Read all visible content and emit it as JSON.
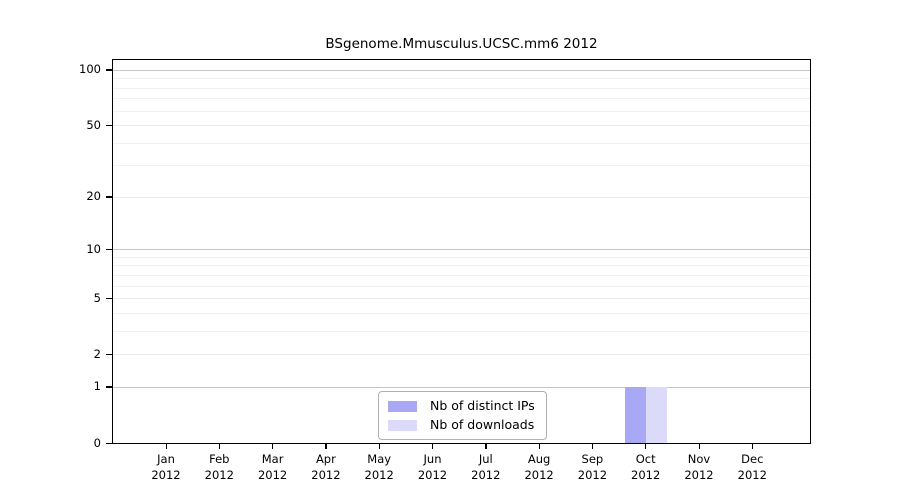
{
  "chart_data": {
    "type": "bar",
    "title": "BSgenome.Mmusculus.UCSC.mm6 2012",
    "x_months": [
      "Jan",
      "Feb",
      "Mar",
      "Apr",
      "May",
      "Jun",
      "Jul",
      "Aug",
      "Sep",
      "Oct",
      "Nov",
      "Dec"
    ],
    "x_year": "2012",
    "series": [
      {
        "name": "Nb of distinct IPs",
        "color": "#a8a8f5",
        "values": [
          0,
          0,
          0,
          0,
          0,
          0,
          0,
          0,
          0,
          1,
          0,
          0
        ]
      },
      {
        "name": "Nb of downloads",
        "color": "#dbdbf9",
        "values": [
          0,
          0,
          0,
          0,
          0,
          0,
          0,
          0,
          0,
          1,
          0,
          0
        ]
      }
    ],
    "y_scale": "log1p",
    "ylim": [
      0,
      113
    ],
    "y_major_ticks": [
      0,
      1,
      2,
      5,
      10,
      20,
      50,
      100
    ],
    "y_emphasized_gridlines": [
      1,
      10,
      100
    ],
    "y_minor_gridlines": [
      3,
      4,
      6,
      7,
      8,
      9,
      30,
      40,
      60,
      70,
      80,
      90
    ],
    "grid": true,
    "legend_position": "inside-bottom-center",
    "colors": {
      "axis": "#000000",
      "emphasized_gridline": "#c6c6c6",
      "major_gridline": "#e9e9e9",
      "minor_gridline": "#f1f1f1",
      "legend_border": "#b0b0b0",
      "background": "#ffffff"
    }
  }
}
